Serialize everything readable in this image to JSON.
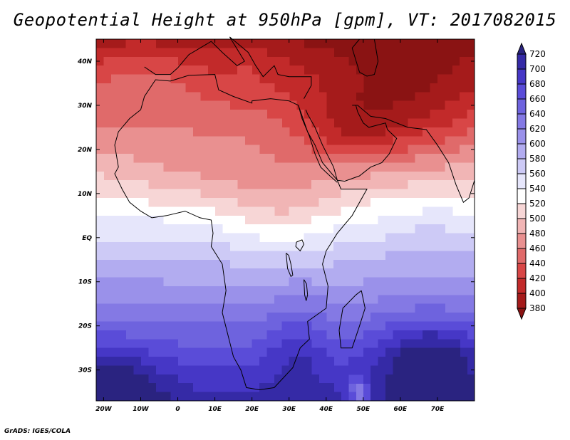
{
  "title": "Geopotential Height at 950hPa [gpm], VT: 2017082015",
  "footer": "GrADS: IGES/COLA",
  "chart_data": {
    "type": "heatmap",
    "title": "Geopotential Height at 950hPa [gpm], VT: 2017082015",
    "variable": "Geopotential Height at 950hPa",
    "unit": "gpm",
    "valid_time": "2017082015",
    "x_range": [
      -22,
      80
    ],
    "y_range": [
      -37,
      45
    ],
    "x_ticks": [
      {
        "lon": -20,
        "label": "20W"
      },
      {
        "lon": -10,
        "label": "10W"
      },
      {
        "lon": 0,
        "label": "0"
      },
      {
        "lon": 10,
        "label": "10E"
      },
      {
        "lon": 20,
        "label": "20E"
      },
      {
        "lon": 30,
        "label": "30E"
      },
      {
        "lon": 40,
        "label": "40E"
      },
      {
        "lon": 50,
        "label": "50E"
      },
      {
        "lon": 60,
        "label": "60E"
      },
      {
        "lon": 70,
        "label": "70E"
      }
    ],
    "y_ticks": [
      {
        "lat": 40,
        "label": "40N"
      },
      {
        "lat": 30,
        "label": "30N"
      },
      {
        "lat": 20,
        "label": "20N"
      },
      {
        "lat": 10,
        "label": "10N"
      },
      {
        "lat": 0,
        "label": "EQ"
      },
      {
        "lat": -10,
        "label": "10S"
      },
      {
        "lat": -20,
        "label": "20S"
      },
      {
        "lat": -30,
        "label": "30S"
      }
    ],
    "colorbar": {
      "levels": [
        720,
        700,
        680,
        660,
        640,
        620,
        600,
        580,
        560,
        540,
        520,
        500,
        480,
        460,
        440,
        420,
        400,
        380
      ],
      "colors": [
        "#2a2380",
        "#352aa6",
        "#4637c6",
        "#5a4cd8",
        "#6e63de",
        "#8479e4",
        "#9a91ea",
        "#b2acf0",
        "#cdcaf6",
        "#e6e6fb",
        "#ffffff",
        "#f7d6d6",
        "#f1b5b5",
        "#e99090",
        "#e06a6a",
        "#d84646",
        "#c22a2a",
        "#a51b1b",
        "#8a1313"
      ],
      "extend": "both"
    }
  }
}
